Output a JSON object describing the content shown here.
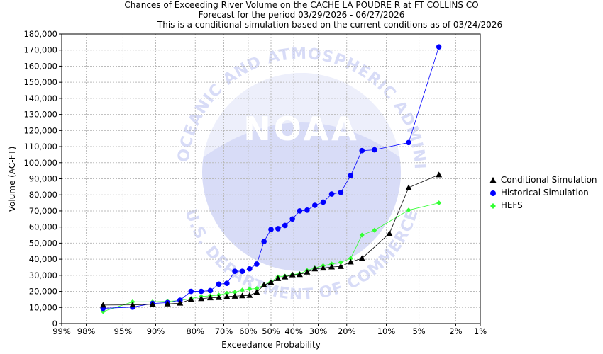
{
  "header": {
    "title_line1": "Chances of Exceeding River Volume on the CACHE LA POUDRE R at FT COLLINS CO",
    "title_line2": "Forecast for the period 03/29/2026 - 06/27/2026",
    "title_line3": "This is a conditional simulation based on the current conditions as of 03/24/2026"
  },
  "watermark": {
    "logo_text": "NOAA",
    "ring_top": "NATIONAL OCEANIC AND ATMOSPHERIC ADMINISTRATION",
    "ring_bottom": "U.S. DEPARTMENT OF COMMERCE"
  },
  "colors": {
    "conditional": "#000000",
    "historical": "#0000ff",
    "hefs": "#33ff33",
    "watermark": "#d8dcf7",
    "grid": "#bbbbbb"
  },
  "chart_data": {
    "type": "line",
    "xlabel": "Exceedance Probability",
    "ylabel": "Volume (AC-FT)",
    "x_scale": "normal-probability",
    "ylim": [
      0,
      180000
    ],
    "grid": true,
    "legend_position": "right",
    "x_ticks": [
      {
        "p": 99,
        "label": "99%"
      },
      {
        "p": 98,
        "label": "98%"
      },
      {
        "p": 95,
        "label": "95%"
      },
      {
        "p": 90,
        "label": "90%"
      },
      {
        "p": 80,
        "label": "80%"
      },
      {
        "p": 70,
        "label": "70%"
      },
      {
        "p": 60,
        "label": "60%"
      },
      {
        "p": 50,
        "label": "50%"
      },
      {
        "p": 40,
        "label": "40%"
      },
      {
        "p": 30,
        "label": "30%"
      },
      {
        "p": 20,
        "label": "20%"
      },
      {
        "p": 10,
        "label": "10%"
      },
      {
        "p": 5,
        "label": "5%"
      },
      {
        "p": 2,
        "label": "2%"
      },
      {
        "p": 1,
        "label": "1%"
      }
    ],
    "y_ticks": [
      {
        "v": 0,
        "label": "0"
      },
      {
        "v": 10000,
        "label": "10,000"
      },
      {
        "v": 20000,
        "label": "20,000"
      },
      {
        "v": 30000,
        "label": "30,000"
      },
      {
        "v": 40000,
        "label": "40,000"
      },
      {
        "v": 50000,
        "label": "50,000"
      },
      {
        "v": 60000,
        "label": "60,000"
      },
      {
        "v": 70000,
        "label": "70,000"
      },
      {
        "v": 80000,
        "label": "80,000"
      },
      {
        "v": 90000,
        "label": "90,000"
      },
      {
        "v": 100000,
        "label": "100,000"
      },
      {
        "v": 110000,
        "label": "110,000"
      },
      {
        "v": 120000,
        "label": "120,000"
      },
      {
        "v": 130000,
        "label": "130,000"
      },
      {
        "v": 140000,
        "label": "140,000"
      },
      {
        "v": 150000,
        "label": "150,000"
      },
      {
        "v": 160000,
        "label": "160,000"
      },
      {
        "v": 170000,
        "label": "170,000"
      },
      {
        "v": 180000,
        "label": "180,000"
      }
    ],
    "series": [
      {
        "name": "Conditional Simulation",
        "marker": "triangle",
        "points": [
          [
            96.9,
            11500
          ],
          [
            93.8,
            11600
          ],
          [
            90.6,
            12000
          ],
          [
            87.5,
            12200
          ],
          [
            84.4,
            12700
          ],
          [
            81.3,
            15000
          ],
          [
            78.1,
            15500
          ],
          [
            75.0,
            16000
          ],
          [
            71.9,
            16200
          ],
          [
            68.8,
            16800
          ],
          [
            65.6,
            17000
          ],
          [
            62.5,
            17300
          ],
          [
            59.4,
            17500
          ],
          [
            56.3,
            19500
          ],
          [
            53.1,
            24000
          ],
          [
            50.0,
            25500
          ],
          [
            46.9,
            28000
          ],
          [
            43.8,
            29000
          ],
          [
            40.6,
            30300
          ],
          [
            37.5,
            30500
          ],
          [
            34.4,
            32000
          ],
          [
            31.3,
            34000
          ],
          [
            28.1,
            34500
          ],
          [
            25.0,
            35200
          ],
          [
            21.9,
            35500
          ],
          [
            18.8,
            38300
          ],
          [
            15.6,
            40500
          ],
          [
            9.4,
            56000
          ],
          [
            6.3,
            84500
          ],
          [
            3.1,
            92500
          ]
        ]
      },
      {
        "name": "Historical Simulation",
        "marker": "circle",
        "points": [
          [
            96.9,
            9500
          ],
          [
            93.8,
            10200
          ],
          [
            90.6,
            12500
          ],
          [
            87.5,
            13000
          ],
          [
            84.4,
            14500
          ],
          [
            81.3,
            20000
          ],
          [
            78.1,
            20000
          ],
          [
            75.0,
            20500
          ],
          [
            71.9,
            24500
          ],
          [
            68.8,
            25000
          ],
          [
            65.6,
            32500
          ],
          [
            62.5,
            32500
          ],
          [
            59.4,
            34000
          ],
          [
            56.3,
            37000
          ],
          [
            53.1,
            51000
          ],
          [
            50.0,
            58500
          ],
          [
            46.9,
            59000
          ],
          [
            43.8,
            61000
          ],
          [
            40.6,
            65000
          ],
          [
            37.5,
            70000
          ],
          [
            34.4,
            70500
          ],
          [
            31.3,
            73500
          ],
          [
            28.1,
            75500
          ],
          [
            25.0,
            80500
          ],
          [
            21.9,
            81500
          ],
          [
            18.8,
            92000
          ],
          [
            15.6,
            107500
          ],
          [
            12.5,
            108000
          ],
          [
            6.3,
            112500
          ],
          [
            3.1,
            172000
          ]
        ]
      },
      {
        "name": "HEFS",
        "marker": "diamond",
        "points": [
          [
            96.9,
            7500
          ],
          [
            93.8,
            13500
          ],
          [
            90.6,
            13500
          ],
          [
            87.5,
            13800
          ],
          [
            84.4,
            14300
          ],
          [
            81.3,
            15500
          ],
          [
            78.1,
            16800
          ],
          [
            75.0,
            17200
          ],
          [
            71.9,
            17700
          ],
          [
            68.8,
            18800
          ],
          [
            65.6,
            19500
          ],
          [
            62.5,
            20800
          ],
          [
            59.4,
            21500
          ],
          [
            56.3,
            21800
          ],
          [
            53.1,
            24000
          ],
          [
            50.0,
            26000
          ],
          [
            46.9,
            29000
          ],
          [
            43.8,
            29500
          ],
          [
            40.6,
            30500
          ],
          [
            37.5,
            31000
          ],
          [
            34.4,
            33000
          ],
          [
            31.3,
            34500
          ],
          [
            28.1,
            36000
          ],
          [
            25.0,
            37000
          ],
          [
            21.9,
            38000
          ],
          [
            18.8,
            40500
          ],
          [
            15.6,
            55000
          ],
          [
            12.5,
            58000
          ],
          [
            6.3,
            70500
          ],
          [
            3.1,
            75000
          ]
        ]
      }
    ]
  }
}
